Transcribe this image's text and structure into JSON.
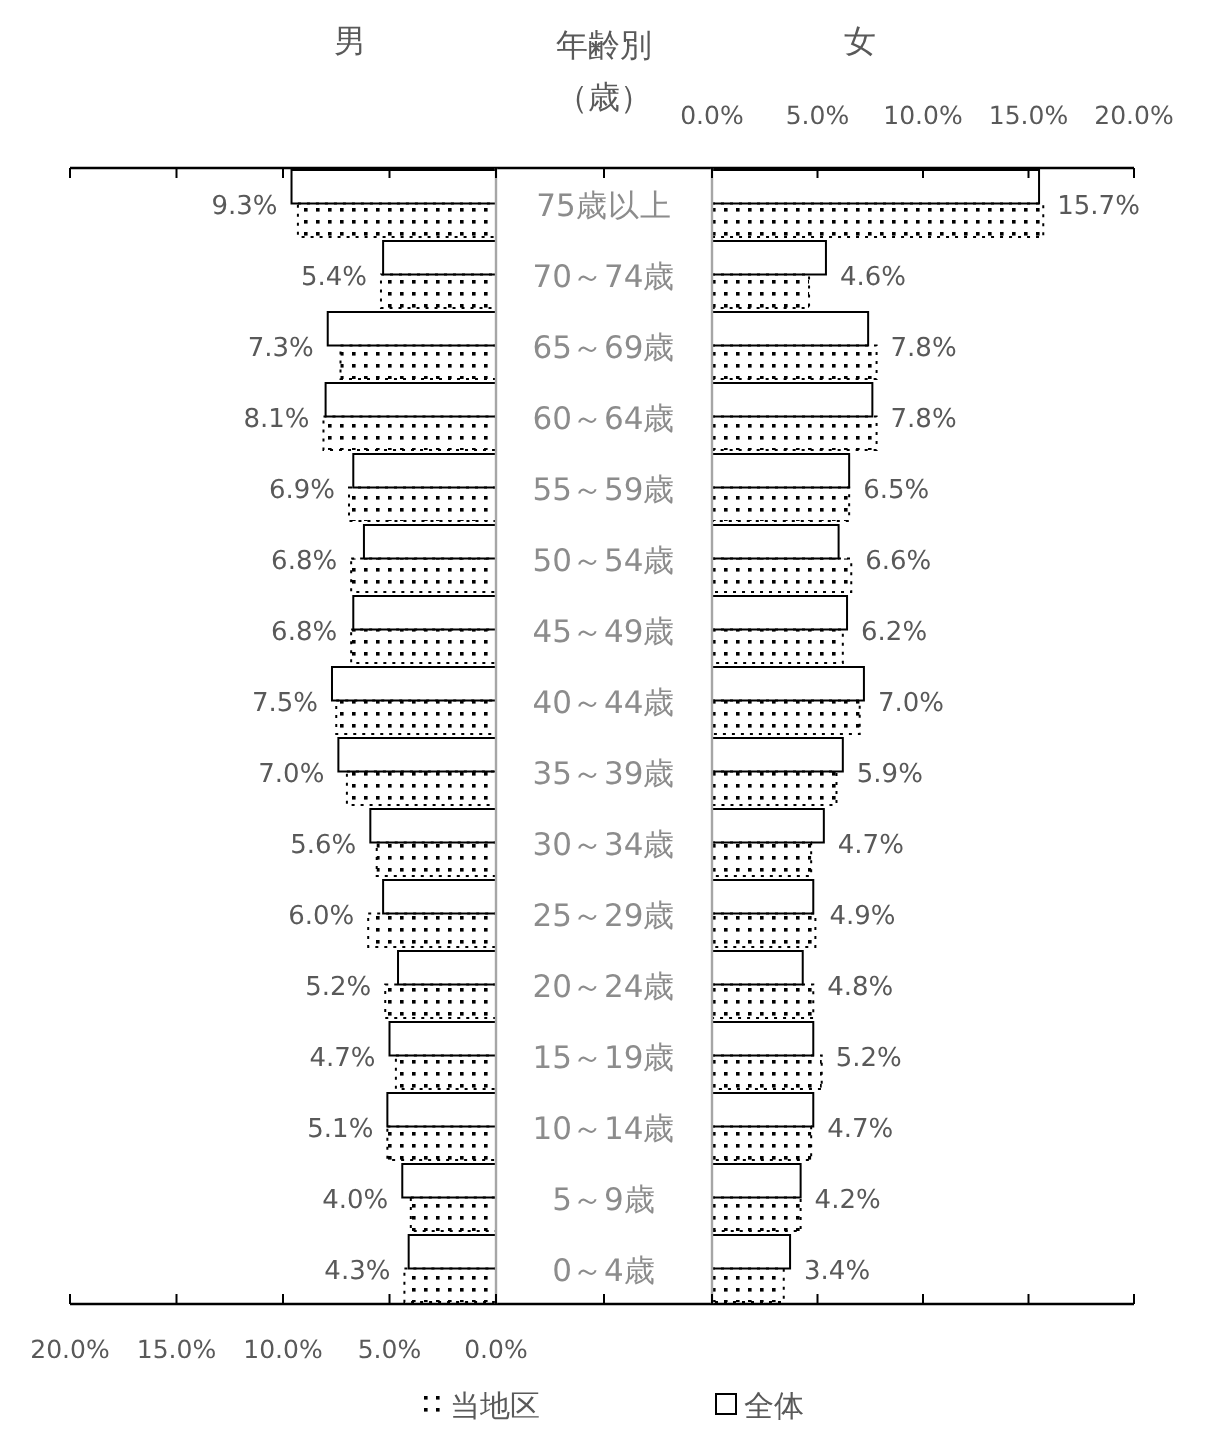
{
  "chart_data": [
    {
      "type": "bar",
      "orientation": "horizontal",
      "title": "男",
      "ylabel": "年齢別（歳）",
      "legend": "bottom",
      "categories": [
        "75歳以上",
        "70～74歳",
        "65～69歳",
        "60～64歳",
        "55～59歳",
        "50～54歳",
        "45～49歳",
        "40～44歳",
        "35～39歳",
        "30～34歳",
        "25～29歳",
        "20～24歳",
        "15～19歳",
        "10～14歳",
        "5～9歳",
        "0～4歳"
      ],
      "xlim": [
        20,
        0
      ],
      "xticks": [
        {
          "value": 20,
          "label": "20.0%"
        },
        {
          "value": 15,
          "label": "15.0%"
        },
        {
          "value": 10,
          "label": "10.0%"
        },
        {
          "value": 5,
          "label": "5.0%"
        },
        {
          "value": 0,
          "label": "0.0%"
        }
      ],
      "series": [
        {
          "name": "全体",
          "color": "#ffffff",
          "values": [
            9.6,
            5.3,
            7.9,
            8.0,
            6.7,
            6.2,
            6.7,
            7.7,
            7.4,
            5.9,
            5.3,
            4.6,
            5.0,
            5.1,
            4.4,
            4.1
          ]
        },
        {
          "name": "当地区",
          "color": "#000000",
          "values": [
            9.3,
            5.4,
            7.3,
            8.1,
            6.9,
            6.8,
            6.8,
            7.5,
            7.0,
            5.6,
            6.0,
            5.2,
            4.7,
            5.1,
            4.0,
            4.3
          ],
          "value_labels": [
            "9.3%",
            "5.4%",
            "7.3%",
            "8.1%",
            "6.9%",
            "6.8%",
            "6.8%",
            "7.5%",
            "7.0%",
            "5.6%",
            "6.0%",
            "5.2%",
            "4.7%",
            "5.1%",
            "4.0%",
            "4.3%"
          ]
        }
      ]
    },
    {
      "type": "bar",
      "orientation": "horizontal",
      "title": "女",
      "tick_labels": "x",
      "categories": [
        "75歳以上",
        "70～74歳",
        "65～69歳",
        "60～64歳",
        "55～59歳",
        "50～54歳",
        "45～49歳",
        "40～44歳",
        "35～39歳",
        "30～34歳",
        "25～29歳",
        "20～24歳",
        "15～19歳",
        "10～14歳",
        "5～9歳",
        "0～4歳"
      ],
      "xlim": [
        0,
        20
      ],
      "xticks": [
        {
          "value": 0,
          "label": "0.0%"
        },
        {
          "value": 5,
          "label": "5.0%"
        },
        {
          "value": 10,
          "label": "10.0%"
        },
        {
          "value": 15,
          "label": "15.0%"
        },
        {
          "value": 20,
          "label": "20.0%"
        }
      ],
      "series": [
        {
          "name": "全体",
          "color": "#ffffff",
          "values": [
            15.5,
            5.4,
            7.4,
            7.6,
            6.5,
            6.0,
            6.4,
            7.2,
            6.2,
            5.3,
            4.8,
            4.3,
            4.8,
            4.8,
            4.2,
            3.7
          ]
        },
        {
          "name": "当地区",
          "color": "#000000",
          "values": [
            15.7,
            4.6,
            7.8,
            7.8,
            6.5,
            6.6,
            6.2,
            7.0,
            5.9,
            4.7,
            4.9,
            4.8,
            5.2,
            4.7,
            4.2,
            3.4
          ],
          "value_labels": [
            "15.7%",
            "4.6%",
            "7.8%",
            "7.8%",
            "6.5%",
            "6.6%",
            "6.2%",
            "7.0%",
            "5.9%",
            "4.7%",
            "4.9%",
            "4.8%",
            "5.2%",
            "4.7%",
            "4.2%",
            "3.4%"
          ]
        }
      ]
    }
  ]
}
